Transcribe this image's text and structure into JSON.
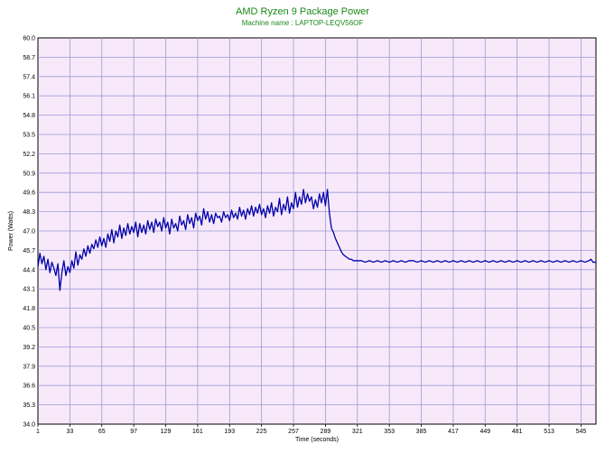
{
  "chart_data": {
    "type": "line",
    "title": "AMD Ryzen 9 Package Power",
    "subtitle": "Machine name : LAPTOP-LEQV56OF",
    "xlabel": "Time (seconds)",
    "ylabel": "Power (Watts)",
    "xlim": [
      1,
      560
    ],
    "ylim": [
      34.0,
      60.0
    ],
    "grid": true,
    "x_ticks": [
      1,
      33,
      65,
      97,
      129,
      161,
      193,
      225,
      257,
      289,
      321,
      353,
      385,
      417,
      449,
      481,
      513,
      545
    ],
    "y_ticks": [
      "34.0",
      "35.3",
      "36.6",
      "37.9",
      "39.2",
      "40.5",
      "41.8",
      "43.1",
      "44.4",
      "45.7",
      "47.0",
      "48.3",
      "49.6",
      "50.9",
      "52.2",
      "53.5",
      "54.8",
      "56.1",
      "57.4",
      "58.7",
      "60.0"
    ],
    "series": [
      {
        "color": "#0000aa",
        "points": [
          [
            1,
            44.6
          ],
          [
            3,
            45.5
          ],
          [
            5,
            44.8
          ],
          [
            7,
            45.3
          ],
          [
            9,
            44.4
          ],
          [
            11,
            45.1
          ],
          [
            13,
            44.2
          ],
          [
            15,
            44.9
          ],
          [
            17,
            44.5
          ],
          [
            19,
            44.0
          ],
          [
            21,
            44.8
          ],
          [
            23,
            43.0
          ],
          [
            25,
            44.2
          ],
          [
            27,
            45.0
          ],
          [
            29,
            44.0
          ],
          [
            31,
            44.6
          ],
          [
            33,
            44.2
          ],
          [
            35,
            45.0
          ],
          [
            37,
            44.5
          ],
          [
            39,
            45.6
          ],
          [
            41,
            44.7
          ],
          [
            43,
            45.4
          ],
          [
            45,
            45.1
          ],
          [
            47,
            45.8
          ],
          [
            49,
            45.3
          ],
          [
            51,
            46.0
          ],
          [
            53,
            45.5
          ],
          [
            55,
            46.1
          ],
          [
            57,
            45.8
          ],
          [
            59,
            46.4
          ],
          [
            61,
            45.9
          ],
          [
            63,
            46.6
          ],
          [
            65,
            46.0
          ],
          [
            67,
            46.5
          ],
          [
            69,
            45.9
          ],
          [
            71,
            46.8
          ],
          [
            73,
            46.3
          ],
          [
            75,
            47.1
          ],
          [
            77,
            46.2
          ],
          [
            79,
            47.0
          ],
          [
            81,
            46.6
          ],
          [
            83,
            47.4
          ],
          [
            85,
            46.5
          ],
          [
            87,
            47.2
          ],
          [
            89,
            46.7
          ],
          [
            91,
            47.5
          ],
          [
            93,
            46.8
          ],
          [
            95,
            47.3
          ],
          [
            97,
            46.9
          ],
          [
            99,
            47.6
          ],
          [
            101,
            46.6
          ],
          [
            103,
            47.5
          ],
          [
            105,
            46.9
          ],
          [
            107,
            47.4
          ],
          [
            109,
            46.8
          ],
          [
            111,
            47.7
          ],
          [
            113,
            47.1
          ],
          [
            115,
            47.6
          ],
          [
            117,
            46.9
          ],
          [
            119,
            47.8
          ],
          [
            121,
            47.3
          ],
          [
            123,
            47.6
          ],
          [
            125,
            47.0
          ],
          [
            127,
            47.9
          ],
          [
            129,
            47.2
          ],
          [
            131,
            47.6
          ],
          [
            133,
            46.8
          ],
          [
            135,
            47.8
          ],
          [
            137,
            47.2
          ],
          [
            139,
            47.5
          ],
          [
            141,
            47.0
          ],
          [
            143,
            48.0
          ],
          [
            145,
            47.4
          ],
          [
            147,
            47.7
          ],
          [
            149,
            47.1
          ],
          [
            151,
            48.1
          ],
          [
            153,
            47.5
          ],
          [
            155,
            47.9
          ],
          [
            157,
            47.2
          ],
          [
            159,
            48.2
          ],
          [
            161,
            47.7
          ],
          [
            163,
            48.0
          ],
          [
            165,
            47.4
          ],
          [
            167,
            48.5
          ],
          [
            169,
            47.8
          ],
          [
            171,
            48.3
          ],
          [
            173,
            47.6
          ],
          [
            175,
            48.1
          ],
          [
            177,
            47.5
          ],
          [
            179,
            48.2
          ],
          [
            181,
            47.9
          ],
          [
            183,
            48.0
          ],
          [
            185,
            47.6
          ],
          [
            187,
            48.3
          ],
          [
            189,
            47.9
          ],
          [
            191,
            48.1
          ],
          [
            193,
            47.7
          ],
          [
            195,
            48.4
          ],
          [
            197,
            47.9
          ],
          [
            199,
            48.2
          ],
          [
            201,
            47.8
          ],
          [
            203,
            48.6
          ],
          [
            205,
            48.0
          ],
          [
            207,
            48.4
          ],
          [
            209,
            47.8
          ],
          [
            211,
            48.5
          ],
          [
            213,
            48.1
          ],
          [
            215,
            48.7
          ],
          [
            217,
            48.0
          ],
          [
            219,
            48.6
          ],
          [
            221,
            48.2
          ],
          [
            223,
            48.8
          ],
          [
            225,
            48.1
          ],
          [
            227,
            48.5
          ],
          [
            229,
            47.9
          ],
          [
            231,
            48.7
          ],
          [
            233,
            48.2
          ],
          [
            235,
            48.9
          ],
          [
            237,
            48.0
          ],
          [
            239,
            48.6
          ],
          [
            241,
            48.3
          ],
          [
            243,
            49.2
          ],
          [
            245,
            48.1
          ],
          [
            247,
            48.8
          ],
          [
            249,
            48.4
          ],
          [
            251,
            49.3
          ],
          [
            253,
            48.2
          ],
          [
            255,
            48.9
          ],
          [
            257,
            48.5
          ],
          [
            259,
            49.6
          ],
          [
            261,
            48.6
          ],
          [
            263,
            49.3
          ],
          [
            265,
            48.8
          ],
          [
            267,
            49.8
          ],
          [
            269,
            48.9
          ],
          [
            271,
            49.5
          ],
          [
            273,
            49.0
          ],
          [
            275,
            49.3
          ],
          [
            277,
            48.5
          ],
          [
            279,
            49.1
          ],
          [
            281,
            48.6
          ],
          [
            283,
            49.5
          ],
          [
            285,
            48.9
          ],
          [
            287,
            49.6
          ],
          [
            289,
            48.7
          ],
          [
            291,
            49.8
          ],
          [
            293,
            48.2
          ],
          [
            295,
            47.2
          ],
          [
            297,
            46.9
          ],
          [
            299,
            46.5
          ],
          [
            301,
            46.2
          ],
          [
            303,
            45.9
          ],
          [
            305,
            45.6
          ],
          [
            307,
            45.4
          ],
          [
            309,
            45.3
          ],
          [
            311,
            45.2
          ],
          [
            313,
            45.1
          ],
          [
            315,
            45.1
          ],
          [
            317,
            45.0
          ],
          [
            319,
            45.0
          ],
          [
            321,
            45.0
          ],
          [
            325,
            45.0
          ],
          [
            329,
            44.9
          ],
          [
            333,
            45.0
          ],
          [
            337,
            44.9
          ],
          [
            341,
            45.0
          ],
          [
            345,
            44.9
          ],
          [
            349,
            45.0
          ],
          [
            353,
            44.9
          ],
          [
            357,
            45.0
          ],
          [
            361,
            44.9
          ],
          [
            365,
            45.0
          ],
          [
            369,
            44.9
          ],
          [
            373,
            45.0
          ],
          [
            377,
            45.0
          ],
          [
            381,
            44.9
          ],
          [
            385,
            45.0
          ],
          [
            389,
            44.9
          ],
          [
            393,
            45.0
          ],
          [
            397,
            44.9
          ],
          [
            401,
            45.0
          ],
          [
            405,
            44.9
          ],
          [
            409,
            45.0
          ],
          [
            413,
            44.9
          ],
          [
            417,
            45.0
          ],
          [
            421,
            44.9
          ],
          [
            425,
            45.0
          ],
          [
            429,
            44.9
          ],
          [
            433,
            45.0
          ],
          [
            437,
            44.9
          ],
          [
            441,
            45.0
          ],
          [
            445,
            44.9
          ],
          [
            449,
            45.0
          ],
          [
            453,
            44.9
          ],
          [
            457,
            45.0
          ],
          [
            461,
            44.9
          ],
          [
            465,
            45.0
          ],
          [
            469,
            44.9
          ],
          [
            473,
            45.0
          ],
          [
            477,
            44.9
          ],
          [
            481,
            45.0
          ],
          [
            485,
            44.9
          ],
          [
            489,
            45.0
          ],
          [
            493,
            44.9
          ],
          [
            497,
            45.0
          ],
          [
            501,
            44.9
          ],
          [
            505,
            45.0
          ],
          [
            509,
            44.9
          ],
          [
            513,
            45.0
          ],
          [
            517,
            44.9
          ],
          [
            521,
            45.0
          ],
          [
            525,
            44.9
          ],
          [
            529,
            45.0
          ],
          [
            533,
            44.9
          ],
          [
            537,
            45.0
          ],
          [
            541,
            44.9
          ],
          [
            545,
            45.0
          ],
          [
            549,
            44.9
          ],
          [
            553,
            45.0
          ],
          [
            555,
            45.1
          ],
          [
            557,
            44.9
          ],
          [
            560,
            44.9
          ]
        ]
      }
    ]
  }
}
